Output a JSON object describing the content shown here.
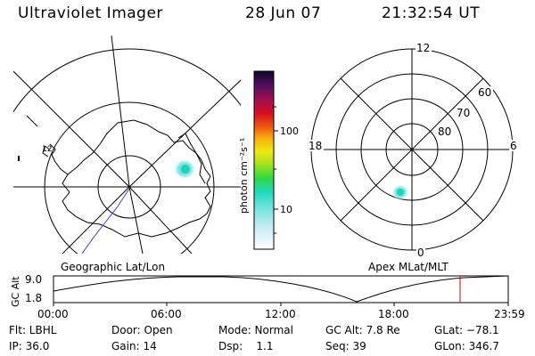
{
  "header": {
    "title": "Ultraviolet Imager",
    "date": "28 Jun 07",
    "time": "21:32:54 UT"
  },
  "geo_map": {
    "label": "Geographic Lat/Lon",
    "mark": "12"
  },
  "colorbar": {
    "unit_label": "photon cm⁻²s⁻¹",
    "ticks": [
      "100",
      "10"
    ]
  },
  "polar_map": {
    "label": "Apex MLat/MLT",
    "mlt_labels": {
      "top": "12",
      "left": "18",
      "right": "6",
      "bottom": "0"
    },
    "lat_labels": [
      "60",
      "70",
      "80"
    ]
  },
  "altitude_plot": {
    "ylabel": "GC Alt",
    "ymax": "9.0",
    "ymin": "1.8",
    "time_ticks": [
      "00:00",
      "06:00",
      "12:00",
      "18:00",
      "23:59"
    ],
    "current_time_marker_color": "#cc0000"
  },
  "info": {
    "flt": "Flt: LBHL",
    "door": "Door: Open",
    "mode": "Mode: Normal",
    "gc_alt": "GC Alt: 7.8 Re",
    "glat": "GLat: −78.1",
    "ip": "IP: 36.0",
    "gain": "Gain: 14",
    "dsp": "Dsp:    1.1",
    "seq": "Seq: 39",
    "glon": "GLon: 346.7"
  }
}
